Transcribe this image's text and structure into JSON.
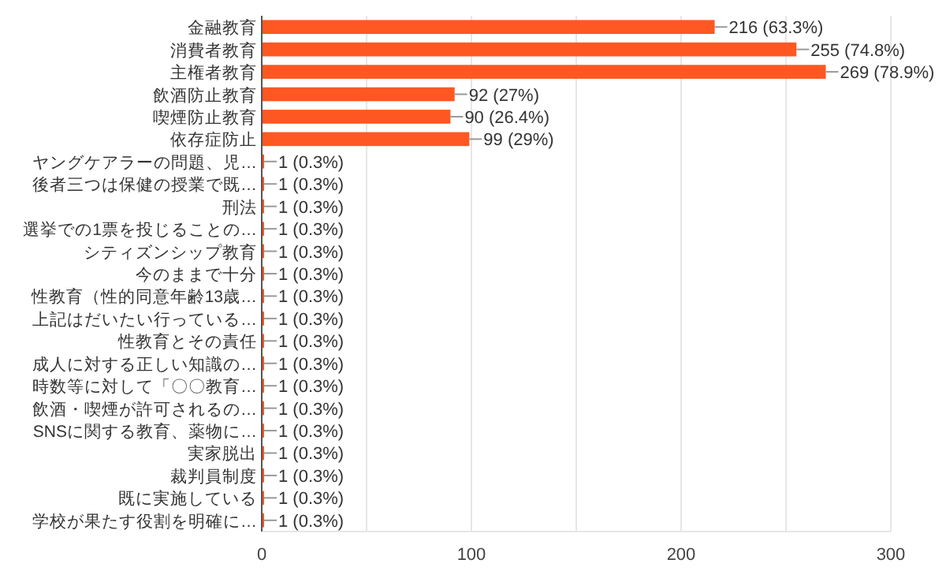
{
  "chart_data": {
    "type": "bar",
    "orientation": "horizontal",
    "color": "#ff5722",
    "categories": [
      "金融教育",
      "消費者教育",
      "主権者教育",
      "飲酒防止教育",
      "喫煙防止教育",
      "依存症防止",
      "ヤングケアラーの問題、児…",
      "後者三つは保健の授業で既…",
      "刑法",
      "選挙での1票を投じることの…",
      "シティズンシップ教育",
      "今のままで十分",
      "性教育（性的同意年齢13歳…",
      "上記はだいたい行っている…",
      "性教育とその責任",
      "成人に対する正しい知識の…",
      "時数等に対して「〇〇教育…",
      "飲酒・喫煙が許可されるの…",
      "SNSに関する教育、薬物に…",
      "実家脱出",
      "裁判員制度",
      "既に実施している",
      "学校が果たす役割を明確に…"
    ],
    "values": [
      216,
      255,
      269,
      92,
      90,
      99,
      1,
      1,
      1,
      1,
      1,
      1,
      1,
      1,
      1,
      1,
      1,
      1,
      1,
      1,
      1,
      1,
      1
    ],
    "value_labels": [
      "216 (63.3%)",
      "255 (74.8%)",
      "269 (78.9%)",
      "92 (27%)",
      "90 (26.4%)",
      "99 (29%)",
      "1 (0.3%)",
      "1 (0.3%)",
      "1 (0.3%)",
      "1 (0.3%)",
      "1 (0.3%)",
      "1 (0.3%)",
      "1 (0.3%)",
      "1 (0.3%)",
      "1 (0.3%)",
      "1 (0.3%)",
      "1 (0.3%)",
      "1 (0.3%)",
      "1 (0.3%)",
      "1 (0.3%)",
      "1 (0.3%)",
      "1 (0.3%)",
      "1 (0.3%)"
    ],
    "xlim": [
      0,
      300
    ],
    "xticks": [
      0,
      {
        "value": 50,
        "label": null
      },
      100,
      {
        "value": 150,
        "label": null
      },
      200,
      {
        "value": 250,
        "label": null
      },
      300
    ],
    "grid": "x"
  }
}
